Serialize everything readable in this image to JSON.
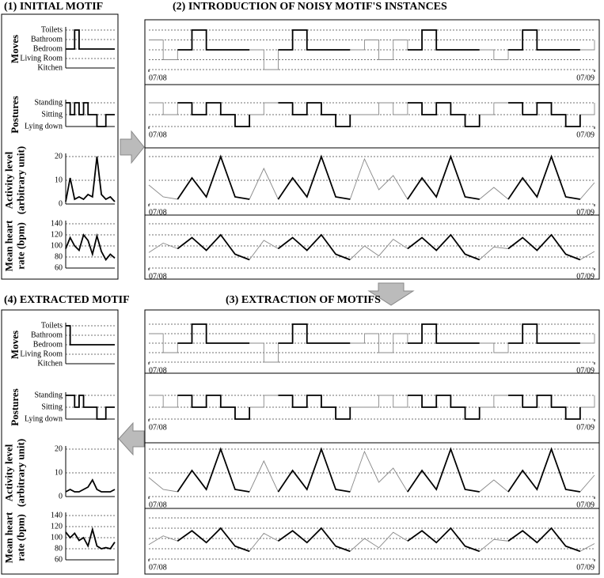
{
  "titles": [
    "(1) INITIAL MOTIF",
    "(2) INTRODUCTION OF NOISY MOTIF'S INSTANCES",
    "(3) EXTRACTION OF MOTIFS",
    "(4) EXTRACTED MOTIF"
  ],
  "chart_data": [
    {
      "type": "step",
      "ylabel": [
        "Moves"
      ],
      "ylim": [
        0,
        4
      ],
      "yticks": [
        {
          "value": 0,
          "label": "Kitchen"
        },
        {
          "value": 1,
          "label": "Living Room"
        },
        {
          "value": 2,
          "label": "Bedroom"
        },
        {
          "value": 3,
          "label": "Bathroom"
        },
        {
          "value": 4,
          "label": "Toilets"
        }
      ],
      "series": [
        {
          "color": "#000000",
          "values": [
            2,
            2,
            4,
            2,
            2,
            2,
            2,
            2,
            2,
            2,
            2,
            2
          ]
        }
      ]
    },
    {
      "type": "step",
      "ylabel": [
        "Postures"
      ],
      "ylim": [
        0,
        2
      ],
      "yticks": [
        {
          "value": 0,
          "label": "Lying down"
        },
        {
          "value": 1,
          "label": "Sitting"
        },
        {
          "value": 2,
          "label": "Standing"
        }
      ],
      "series": [
        {
          "color": "#000000",
          "values": [
            2,
            1,
            2,
            1,
            2,
            1,
            1,
            0,
            0,
            1,
            1,
            1
          ]
        }
      ]
    },
    {
      "type": "line",
      "ylabel": [
        "Activity level",
        "(arbitrary unit)"
      ],
      "ylim": [
        0,
        20
      ],
      "yticks": [
        0,
        10,
        20
      ],
      "series": [
        {
          "color": "#000000",
          "values": [
            1,
            11,
            2,
            3,
            2,
            4,
            3,
            20,
            4,
            2,
            3,
            1
          ]
        }
      ]
    },
    {
      "type": "line",
      "ylabel": [
        "Mean heart",
        "rate (bpm)"
      ],
      "ylim": [
        60,
        140
      ],
      "yticks": [
        60,
        80,
        100,
        120,
        140
      ],
      "series": [
        {
          "color": "#000000",
          "values": [
            95,
            115,
            100,
            92,
            120,
            110,
            85,
            118,
            90,
            75,
            85,
            78
          ]
        }
      ]
    },
    {
      "type": "step",
      "ylim": [
        0,
        4
      ],
      "yticks": [
        0,
        1,
        2,
        3,
        4
      ],
      "xlim": [
        0,
        31
      ],
      "xticks": [
        {
          "value": 0,
          "label": "07/08"
        },
        {
          "value": 31,
          "label": "07/09"
        }
      ],
      "series": [
        {
          "color": "#888888",
          "values": [
            3,
            1,
            2,
            4,
            2,
            2,
            2,
            2,
            0,
            2,
            4,
            2,
            2,
            2,
            2,
            3,
            1,
            3,
            2,
            4,
            2,
            2,
            2,
            2,
            1,
            2,
            4,
            2,
            2,
            2,
            2,
            3
          ]
        },
        {
          "color": "#000000",
          "values": [
            null,
            null,
            2,
            4,
            2,
            2,
            2,
            2,
            null,
            2,
            4,
            2,
            2,
            2,
            2,
            null,
            null,
            null,
            2,
            4,
            2,
            2,
            2,
            2,
            null,
            2,
            4,
            2,
            2,
            2,
            2,
            null
          ]
        }
      ]
    },
    {
      "type": "step",
      "ylim": [
        0,
        2
      ],
      "yticks": [
        0,
        1,
        2
      ],
      "xlim": [
        0,
        31
      ],
      "xticks": [
        {
          "value": 0,
          "label": "07/08"
        },
        {
          "value": 31,
          "label": "07/09"
        }
      ],
      "series": [
        {
          "color": "#888888",
          "values": [
            2,
            1,
            2,
            1,
            2,
            1,
            0,
            1,
            2,
            2,
            1,
            2,
            1,
            0,
            1,
            1,
            2,
            1,
            2,
            1,
            2,
            1,
            0,
            1,
            2,
            2,
            1,
            2,
            1,
            0,
            1,
            2
          ]
        },
        {
          "color": "#000000",
          "values": [
            null,
            null,
            2,
            1,
            2,
            1,
            0,
            1,
            null,
            2,
            1,
            2,
            1,
            0,
            1,
            null,
            null,
            null,
            2,
            1,
            2,
            1,
            0,
            1,
            null,
            2,
            1,
            2,
            1,
            0,
            1,
            null
          ]
        }
      ]
    },
    {
      "type": "line",
      "ylim": [
        0,
        20
      ],
      "yticks": [
        0,
        10,
        20
      ],
      "xlim": [
        0,
        31
      ],
      "xticks": [
        {
          "value": 0,
          "label": "07/08"
        },
        {
          "value": 31,
          "label": "07/09"
        }
      ],
      "series": [
        {
          "color": "#888888",
          "values": [
            8,
            3,
            2,
            11,
            3,
            20,
            3,
            2,
            15,
            2,
            11,
            3,
            20,
            3,
            2,
            19,
            6,
            12,
            2,
            11,
            3,
            20,
            3,
            2,
            7,
            2,
            11,
            3,
            20,
            3,
            2,
            9
          ]
        },
        {
          "color": "#000000",
          "values": [
            null,
            null,
            2,
            11,
            3,
            20,
            3,
            2,
            null,
            2,
            11,
            3,
            20,
            3,
            2,
            null,
            null,
            null,
            2,
            11,
            3,
            20,
            3,
            2,
            null,
            2,
            11,
            3,
            20,
            3,
            2,
            null
          ]
        }
      ]
    },
    {
      "type": "line",
      "ylim": [
        60,
        140
      ],
      "yticks": [
        60,
        80,
        100,
        120,
        140
      ],
      "xlim": [
        0,
        31
      ],
      "xticks": [
        {
          "value": 0,
          "label": "07/08"
        },
        {
          "value": 31,
          "label": "07/09"
        }
      ],
      "series": [
        {
          "color": "#888888",
          "values": [
            88,
            105,
            95,
            115,
            92,
            120,
            85,
            75,
            110,
            95,
            115,
            92,
            120,
            85,
            75,
            100,
            82,
            112,
            95,
            115,
            92,
            120,
            85,
            75,
            98,
            95,
            115,
            92,
            120,
            85,
            75,
            90
          ]
        },
        {
          "color": "#000000",
          "values": [
            null,
            null,
            95,
            115,
            92,
            120,
            85,
            75,
            null,
            95,
            115,
            92,
            120,
            85,
            75,
            null,
            null,
            null,
            95,
            115,
            92,
            120,
            85,
            75,
            null,
            95,
            115,
            92,
            120,
            85,
            75,
            null
          ]
        }
      ]
    },
    {
      "type": "step",
      "ylabel": [
        "Moves"
      ],
      "ylim": [
        0,
        4
      ],
      "yticks": [
        {
          "value": 0,
          "label": "Kitchen"
        },
        {
          "value": 1,
          "label": "Living Room"
        },
        {
          "value": 2,
          "label": "Bedroom"
        },
        {
          "value": 3,
          "label": "Bathroom"
        },
        {
          "value": 4,
          "label": "Toilets"
        }
      ],
      "series": [
        {
          "color": "#000000",
          "values": [
            4,
            2,
            2,
            2,
            2,
            2,
            2,
            2,
            2,
            2,
            2,
            2
          ]
        }
      ]
    },
    {
      "type": "step",
      "ylabel": [
        "Postures"
      ],
      "ylim": [
        0,
        2
      ],
      "yticks": [
        {
          "value": 0,
          "label": "Lying down"
        },
        {
          "value": 1,
          "label": "Sitting"
        },
        {
          "value": 2,
          "label": "Standing"
        }
      ],
      "series": [
        {
          "color": "#000000",
          "values": [
            2,
            2,
            1,
            2,
            1,
            1,
            1,
            0,
            0,
            1,
            1,
            1
          ]
        }
      ]
    },
    {
      "type": "line",
      "ylabel": [
        "Activity level",
        "(arbitrary unit)"
      ],
      "ylim": [
        0,
        20
      ],
      "yticks": [
        0,
        10,
        20
      ],
      "series": [
        {
          "color": "#000000",
          "values": [
            2,
            3,
            2,
            2,
            3,
            4,
            7,
            3,
            2,
            2,
            2,
            3
          ]
        }
      ]
    },
    {
      "type": "line",
      "ylabel": [
        "Mean heart",
        "rate (bpm)"
      ],
      "ylim": [
        60,
        140
      ],
      "yticks": [
        60,
        80,
        100,
        120,
        140
      ],
      "series": [
        {
          "color": "#000000",
          "values": [
            110,
            100,
            108,
            95,
            100,
            85,
            115,
            85,
            80,
            82,
            80,
            92
          ]
        }
      ]
    },
    {
      "type": "step",
      "ylim": [
        0,
        4
      ],
      "yticks": [
        0,
        1,
        2,
        3,
        4
      ],
      "xlim": [
        0,
        31
      ],
      "xticks": [
        {
          "value": 0,
          "label": "07/08"
        },
        {
          "value": 31,
          "label": "07/09"
        }
      ],
      "series": [
        {
          "color": "#888888",
          "values": [
            3,
            1,
            2,
            4,
            2,
            2,
            2,
            2,
            0,
            2,
            4,
            2,
            2,
            2,
            2,
            3,
            1,
            3,
            2,
            4,
            2,
            2,
            2,
            2,
            1,
            2,
            4,
            2,
            2,
            2,
            2,
            3
          ]
        },
        {
          "color": "#000000",
          "values": [
            null,
            null,
            2,
            4,
            2,
            2,
            2,
            2,
            null,
            2,
            4,
            2,
            2,
            2,
            2,
            null,
            null,
            null,
            2,
            4,
            2,
            2,
            2,
            2,
            null,
            2,
            4,
            2,
            2,
            2,
            2,
            null
          ]
        }
      ]
    },
    {
      "type": "step",
      "ylim": [
        0,
        2
      ],
      "yticks": [
        0,
        1,
        2
      ],
      "xlim": [
        0,
        31
      ],
      "xticks": [
        {
          "value": 0,
          "label": "07/08"
        },
        {
          "value": 31,
          "label": "07/09"
        }
      ],
      "series": [
        {
          "color": "#888888",
          "values": [
            2,
            1,
            2,
            1,
            2,
            1,
            0,
            1,
            2,
            2,
            1,
            2,
            1,
            0,
            1,
            1,
            2,
            1,
            2,
            1,
            2,
            1,
            0,
            1,
            2,
            2,
            1,
            2,
            1,
            0,
            1,
            2
          ]
        },
        {
          "color": "#000000",
          "values": [
            null,
            null,
            2,
            1,
            2,
            1,
            0,
            1,
            null,
            2,
            1,
            2,
            1,
            0,
            1,
            null,
            null,
            null,
            2,
            1,
            2,
            1,
            0,
            1,
            null,
            2,
            1,
            2,
            1,
            0,
            1,
            null
          ]
        }
      ]
    },
    {
      "type": "line",
      "ylim": [
        0,
        20
      ],
      "yticks": [
        0,
        10,
        20
      ],
      "xlim": [
        0,
        31
      ],
      "xticks": [
        {
          "value": 0,
          "label": "07/08"
        },
        {
          "value": 31,
          "label": "07/09"
        }
      ],
      "series": [
        {
          "color": "#888888",
          "values": [
            8,
            3,
            2,
            11,
            3,
            20,
            3,
            2,
            15,
            2,
            11,
            3,
            20,
            3,
            2,
            19,
            6,
            12,
            2,
            11,
            3,
            20,
            3,
            2,
            7,
            2,
            11,
            3,
            20,
            3,
            2,
            9
          ]
        },
        {
          "color": "#000000",
          "values": [
            null,
            null,
            2,
            11,
            3,
            20,
            3,
            2,
            null,
            2,
            11,
            3,
            20,
            3,
            2,
            null,
            null,
            null,
            2,
            11,
            3,
            20,
            3,
            2,
            null,
            2,
            11,
            3,
            20,
            3,
            2,
            null
          ]
        }
      ]
    },
    {
      "type": "line",
      "ylim": [
        60,
        140
      ],
      "yticks": [
        60,
        80,
        100,
        120,
        140
      ],
      "xlim": [
        0,
        31
      ],
      "xticks": [
        {
          "value": 0,
          "label": "07/08"
        },
        {
          "value": 31,
          "label": "07/09"
        }
      ],
      "series": [
        {
          "color": "#888888",
          "values": [
            88,
            105,
            95,
            115,
            92,
            120,
            85,
            75,
            110,
            95,
            115,
            92,
            120,
            85,
            75,
            100,
            82,
            112,
            95,
            115,
            92,
            120,
            85,
            75,
            98,
            95,
            115,
            92,
            120,
            85,
            75,
            90
          ]
        },
        {
          "color": "#000000",
          "values": [
            null,
            null,
            95,
            115,
            92,
            120,
            85,
            75,
            null,
            95,
            115,
            92,
            120,
            85,
            75,
            null,
            null,
            null,
            95,
            115,
            92,
            120,
            85,
            75,
            null,
            95,
            115,
            92,
            120,
            85,
            75,
            null
          ]
        }
      ]
    }
  ]
}
